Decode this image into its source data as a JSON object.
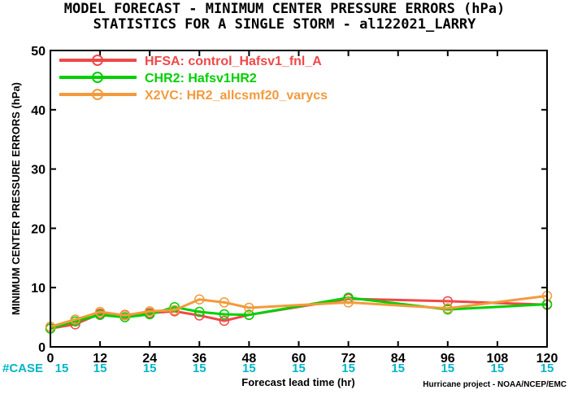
{
  "chart_data": {
    "type": "line",
    "title": "MODEL FORECAST - MINIMUM CENTER PRESSURE ERRORS (hPa)",
    "subtitle": "STATISTICS FOR A SINGLE STORM - al122021_LARRY",
    "xlabel": "Forecast lead time (hr)",
    "ylabel": "MINIMUM CENTER PRESSURE ERRORS (hPa)",
    "xlim": [
      0,
      120
    ],
    "ylim": [
      0,
      50
    ],
    "x_ticks": [
      0,
      12,
      24,
      36,
      48,
      60,
      72,
      84,
      96,
      108,
      120
    ],
    "y_ticks": [
      0,
      10,
      20,
      30,
      40,
      50
    ],
    "grid": false,
    "legend_position": "top-left",
    "series": [
      {
        "name": "HFSA: control_Hafsv1_fnl_A",
        "color": "#f04848",
        "points": [
          [
            0,
            3.1
          ],
          [
            6,
            3.8
          ],
          [
            12,
            5.6
          ],
          [
            18,
            5.4
          ],
          [
            24,
            5.7
          ],
          [
            30,
            6.0
          ],
          [
            36,
            5.3
          ],
          [
            42,
            4.4
          ],
          [
            48,
            5.4
          ],
          [
            72,
            8.1
          ],
          [
            96,
            7.7
          ],
          [
            120,
            7.1
          ]
        ]
      },
      {
        "name": "CHR2: Hafsv1HR2",
        "color": "#00d000",
        "points": [
          [
            0,
            3.1
          ],
          [
            6,
            4.3
          ],
          [
            12,
            5.4
          ],
          [
            18,
            5.0
          ],
          [
            24,
            5.5
          ],
          [
            30,
            6.7
          ],
          [
            36,
            5.9
          ],
          [
            42,
            5.5
          ],
          [
            48,
            5.4
          ],
          [
            72,
            8.3
          ],
          [
            96,
            6.3
          ],
          [
            120,
            7.2
          ]
        ]
      },
      {
        "name": "X2VC: HR2_allcsmf20_varycs",
        "color": "#f39a3c",
        "points": [
          [
            0,
            3.4
          ],
          [
            6,
            4.6
          ],
          [
            12,
            5.9
          ],
          [
            18,
            5.3
          ],
          [
            24,
            6.0
          ],
          [
            30,
            6.2
          ],
          [
            36,
            8.0
          ],
          [
            42,
            7.5
          ],
          [
            48,
            6.6
          ],
          [
            72,
            7.5
          ],
          [
            96,
            6.5
          ],
          [
            120,
            8.6
          ]
        ]
      }
    ],
    "case_label": "#CASE",
    "case_counts": [
      "15",
      "15",
      "15",
      "15",
      "15",
      "15",
      "15",
      "15",
      "15",
      "15",
      "15"
    ],
    "credit": "Hurricane project - NOAA/NCEP/EMC"
  }
}
